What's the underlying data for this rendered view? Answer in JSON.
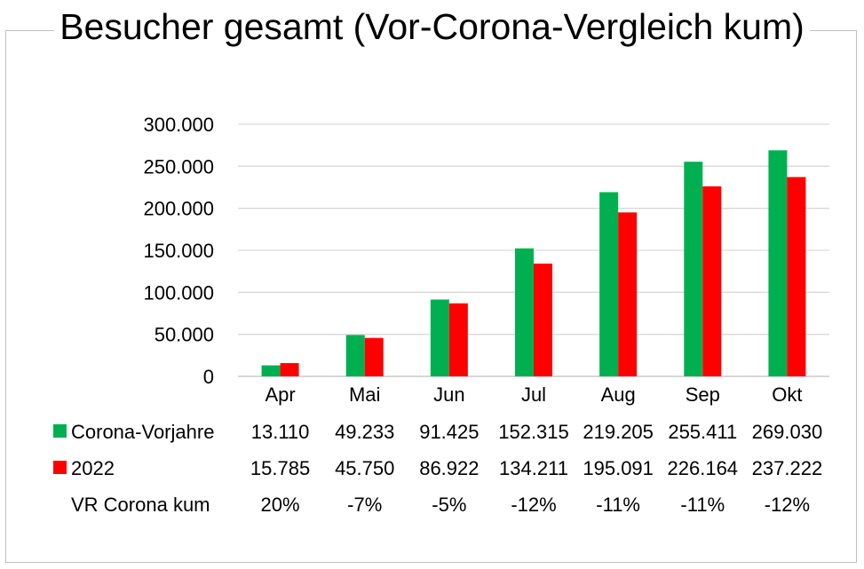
{
  "chart_data": {
    "type": "bar",
    "title": "Besucher gesamt (Vor-Corona-Vergleich kum)",
    "categories": [
      "Apr",
      "Mai",
      "Jun",
      "Jul",
      "Aug",
      "Sep",
      "Okt"
    ],
    "ylim": [
      0,
      300000
    ],
    "yticks": [
      0,
      50000,
      100000,
      150000,
      200000,
      250000,
      300000
    ],
    "ytick_labels": [
      "0",
      "50.000",
      "100.000",
      "150.000",
      "200.000",
      "250.000",
      "300.000"
    ],
    "grid": true,
    "series": [
      {
        "name": "Corona-Vorjahre",
        "color": "#00b050",
        "values": [
          13110,
          49233,
          91425,
          152315,
          219205,
          255411,
          269030
        ],
        "labels": [
          "13.110",
          "49.233",
          "91.425",
          "152.315",
          "219.205",
          "255.411",
          "269.030"
        ]
      },
      {
        "name": "2022",
        "color": "#ff0000",
        "values": [
          15785,
          45750,
          86922,
          134211,
          195091,
          226164,
          237222
        ],
        "labels": [
          "15.785",
          "45.750",
          "86.922",
          "134.211",
          "195.091",
          "226.164",
          "237.222"
        ]
      }
    ],
    "table_extra_row": {
      "name": "VR Corona kum",
      "labels": [
        "20%",
        "-7%",
        "-5%",
        "-12%",
        "-11%",
        "-11%",
        "-12%"
      ]
    }
  }
}
